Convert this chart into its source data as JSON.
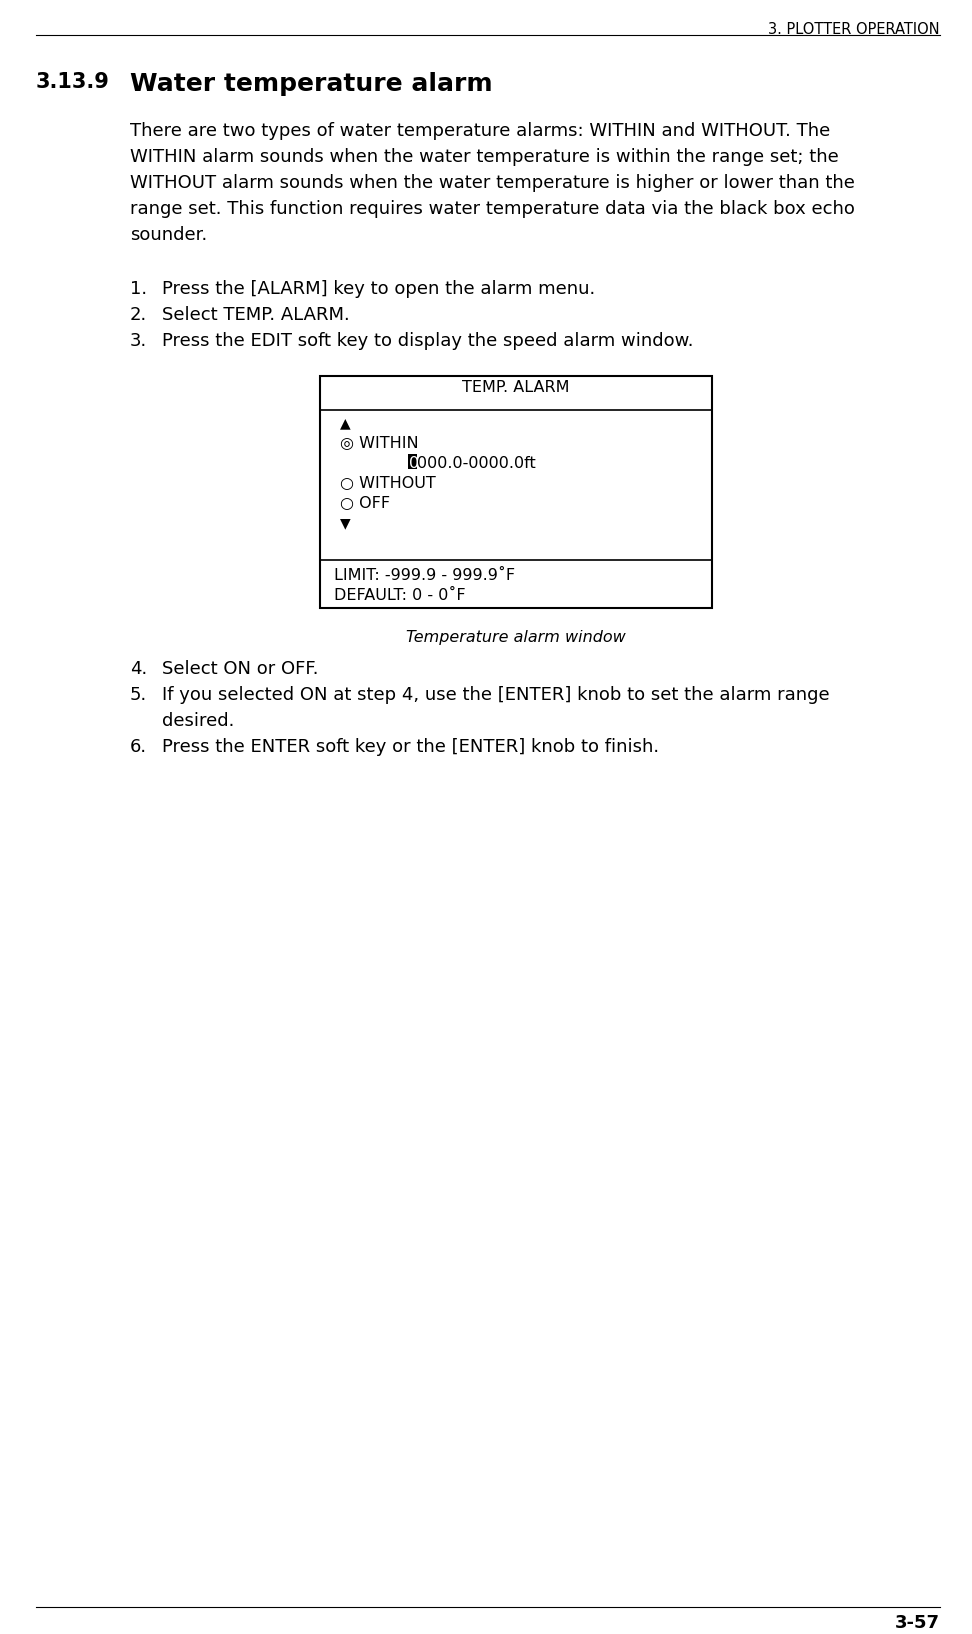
{
  "page_header": "3. PLOTTER OPERATION",
  "page_footer": "3-57",
  "section_number": "3.13.9",
  "section_title": "Water temperature alarm",
  "para_lines": [
    "There are two types of water temperature alarms: WITHIN and WITHOUT. The",
    "WITHIN alarm sounds when the water temperature is within the range set; the",
    "WITHOUT alarm sounds when the water temperature is higher or lower than the",
    "range set. This function requires water temperature data via the black box echo",
    "sounder."
  ],
  "steps": [
    "Press the [ALARM] key to open the alarm menu.",
    "Select TEMP. ALARM.",
    "Press the EDIT soft key to display the speed alarm window."
  ],
  "steps2": [
    [
      "Select ON or OFF."
    ],
    [
      "If you selected ON at step 4, use the [ENTER] knob to set the alarm range",
      "desired."
    ],
    [
      "Press the ENTER soft key or the [ENTER] knob to finish."
    ]
  ],
  "steps2_numbers": [
    "4.",
    "5.",
    "6."
  ],
  "box_title": "TEMP. ALARM",
  "box_limit": "LIMIT: -999.9 - 999.9˚F",
  "box_default": "DEFAULT: 0 - 0˚F",
  "caption": "Temperature alarm window",
  "bg_color": "#ffffff",
  "text_color": "#000000",
  "font_size_header": 10.5,
  "font_size_section_num": 15,
  "font_size_section_title": 18,
  "font_size_body": 13,
  "font_size_box": 11.5,
  "font_size_caption": 11.5,
  "font_size_footer": 13
}
